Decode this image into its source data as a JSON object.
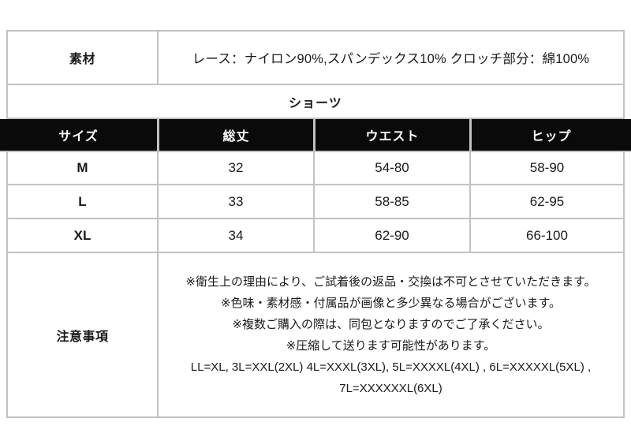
{
  "page": {
    "material_label": "素材",
    "material_value": "レース：ナイロン90%,スパンデックス10% クロッチ部分：綿100%",
    "category_title": "ショーツ",
    "size_table": {
      "headers": [
        "サイズ",
        "総丈",
        "ウエスト",
        "ヒップ"
      ],
      "rows": [
        [
          "M",
          "32",
          "54-80",
          "58-90"
        ],
        [
          "L",
          "33",
          "58-85",
          "62-95"
        ],
        [
          "XL",
          "34",
          "62-90",
          "66-100"
        ]
      ]
    },
    "notes_label": "注意事項",
    "notes_lines": [
      "※衛生上の理由により、ご試着後の返品・交換は不可とさせていただきます。",
      "※色味・素材感・付属品が画像と多少異なる場合がございます。",
      "※複数ご購入の際は、同包となりますのでご了承ください。",
      "※圧縮して送ります可能性があります。",
      "LL=XL, 3L=XXL(2XL) 4L=XXXL(3XL), 5L=XXXXL(4XL) , 6L=XXXXXL(5XL) ,",
      "7L=XXXXXXL(6XL)"
    ],
    "colors": {
      "header_bg": "#0a0a0a",
      "header_text": "#ffffff",
      "border": "#c2c2c2",
      "text": "#1a1a1a"
    }
  }
}
